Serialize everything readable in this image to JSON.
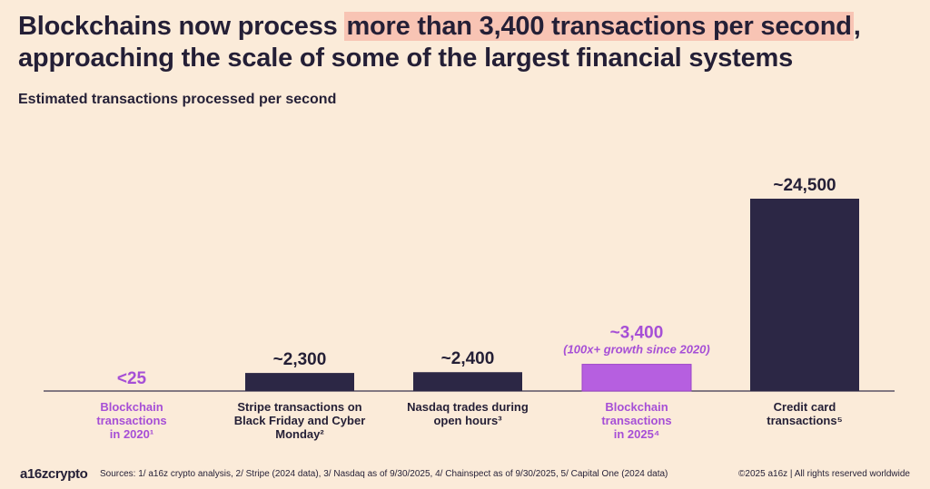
{
  "headline": {
    "part1": "Blockchains now process ",
    "highlight": "more than 3,400 transactions per second",
    "part2": ",",
    "line2": "approaching the scale of some of the largest financial systems"
  },
  "subtitle": "Estimated transactions processed per second",
  "colors": {
    "background": "#FBEBD9",
    "dark_bar": "#2C2745",
    "purple_bar": "#B65FE0",
    "purple_text": "#A64FD6",
    "highlight": "#F8C4B4",
    "text": "#241F36"
  },
  "chart_data": {
    "type": "bar",
    "title": "Estimated transactions processed per second",
    "ylim": [
      0,
      24500
    ],
    "categories": [
      {
        "lines": [
          "Blockchain",
          "transactions",
          "in 2020¹"
        ],
        "color": "purple"
      },
      {
        "lines": [
          "Stripe transactions on",
          "Black Friday and Cyber",
          "Monday²"
        ],
        "color": "dark"
      },
      {
        "lines": [
          "Nasdaq trades during",
          "open hours³"
        ],
        "color": "dark"
      },
      {
        "lines": [
          "Blockchain",
          "transactions",
          "in 2025⁴"
        ],
        "color": "purple"
      },
      {
        "lines": [
          "Credit card",
          "transactions⁵"
        ],
        "color": "dark"
      }
    ],
    "values": [
      25,
      2300,
      2400,
      3400,
      24500
    ],
    "value_labels": [
      "<25",
      "~2,300",
      "~2,400",
      "~3,400",
      "~24,500"
    ],
    "annotations": [
      "",
      "",
      "",
      "(100x+ growth since 2020)",
      ""
    ]
  },
  "footer": {
    "logo": "a16zcrypto",
    "sources": "Sources: 1/ a16z crypto analysis, 2/ Stripe (2024 data), 3/ Nasdaq as of 9/30/2025, 4/ Chainspect as of 9/30/2025, 5/ Capital One (2024 data)",
    "copyright": "©2025 a16z | All rights reserved worldwide"
  }
}
